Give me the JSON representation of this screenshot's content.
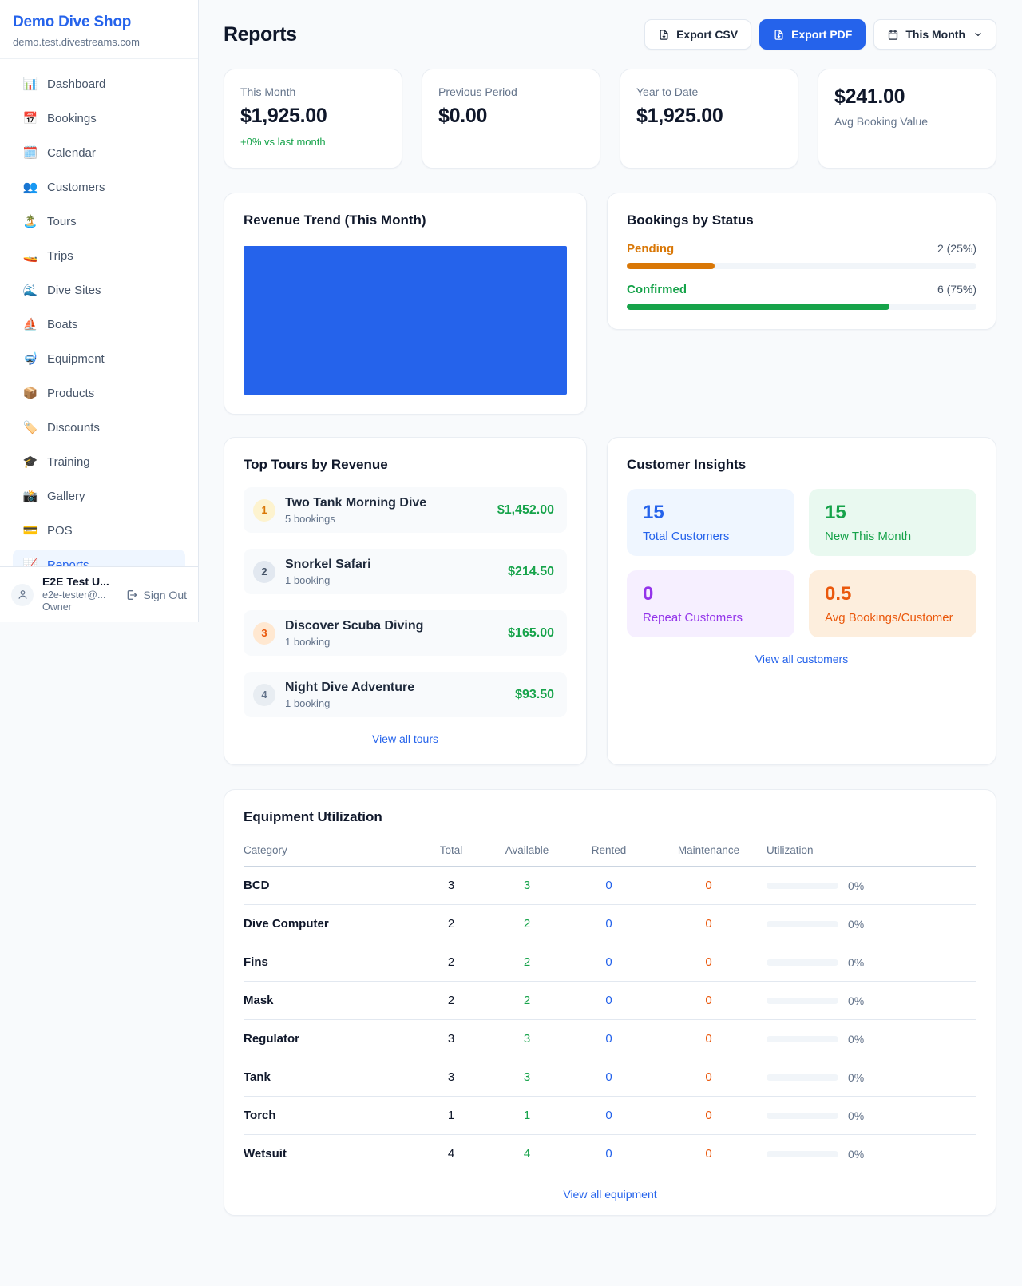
{
  "sidebar": {
    "shop_name": "Demo Dive Shop",
    "shop_domain": "demo.test.divestreams.com",
    "nav": [
      {
        "icon": "📊",
        "label": "Dashboard"
      },
      {
        "icon": "📅",
        "label": "Bookings"
      },
      {
        "icon": "🗓️",
        "label": "Calendar"
      },
      {
        "icon": "👥",
        "label": "Customers"
      },
      {
        "icon": "🏝️",
        "label": "Tours"
      },
      {
        "icon": "🚤",
        "label": "Trips"
      },
      {
        "icon": "🌊",
        "label": "Dive Sites"
      },
      {
        "icon": "⛵",
        "label": "Boats"
      },
      {
        "icon": "🤿",
        "label": "Equipment"
      },
      {
        "icon": "📦",
        "label": "Products"
      },
      {
        "icon": "🏷️",
        "label": "Discounts"
      },
      {
        "icon": "🎓",
        "label": "Training"
      },
      {
        "icon": "📸",
        "label": "Gallery"
      },
      {
        "icon": "💳",
        "label": "POS"
      },
      {
        "icon": "📈",
        "label": "Reports"
      }
    ],
    "user": {
      "name": "E2E Test U...",
      "email": "e2e-tester@...",
      "role": "Owner",
      "sign_out_label": "Sign Out"
    }
  },
  "header": {
    "title": "Reports",
    "export_csv_label": "Export CSV",
    "export_pdf_label": "Export PDF",
    "period_label": "This Month"
  },
  "stats": [
    {
      "label": "This Month",
      "value": "$1,925.00",
      "delta": "+0% vs last month"
    },
    {
      "label": "Previous Period",
      "value": "$0.00"
    },
    {
      "label": "Year to Date",
      "value": "$1,925.00"
    },
    {
      "label": "Avg Booking Value",
      "value": "$241.00"
    }
  ],
  "chart_data": {
    "type": "bar",
    "title": "Revenue Trend (This Month)",
    "categories": [
      "This Month"
    ],
    "values": [
      1925
    ],
    "ylabel": "",
    "xlabel": "",
    "bar_color": "#2563eb",
    "axes_visible": false,
    "legend": false
  },
  "bookings_by_status": {
    "title": "Bookings by Status",
    "rows": [
      {
        "label": "Pending",
        "count": "2 (25%)",
        "percent": 25,
        "color": "#d97706"
      },
      {
        "label": "Confirmed",
        "count": "6 (75%)",
        "percent": 75,
        "color": "#16a34a"
      }
    ]
  },
  "top_tours": {
    "title": "Top Tours by Revenue",
    "items": [
      {
        "rank": "1",
        "name": "Two Tank Morning Dive",
        "bookings": "5 bookings",
        "revenue": "$1,452.00"
      },
      {
        "rank": "2",
        "name": "Snorkel Safari",
        "bookings": "1 booking",
        "revenue": "$214.50"
      },
      {
        "rank": "3",
        "name": "Discover Scuba Diving",
        "bookings": "1 booking",
        "revenue": "$165.00"
      },
      {
        "rank": "4",
        "name": "Night Dive Adventure",
        "bookings": "1 booking",
        "revenue": "$93.50"
      }
    ],
    "view_all_label": "View all tours"
  },
  "customer_insights": {
    "title": "Customer Insights",
    "tiles": [
      {
        "value": "15",
        "label": "Total Customers",
        "theme": "blue"
      },
      {
        "value": "15",
        "label": "New This Month",
        "theme": "green"
      },
      {
        "value": "0",
        "label": "Repeat Customers",
        "theme": "purple"
      },
      {
        "value": "0.5",
        "label": "Avg Bookings/Customer",
        "theme": "orange"
      }
    ],
    "view_all_label": "View all customers"
  },
  "equipment": {
    "title": "Equipment Utilization",
    "columns": [
      "Category",
      "Total",
      "Available",
      "Rented",
      "Maintenance",
      "Utilization"
    ],
    "rows": [
      {
        "category": "BCD",
        "total": "3",
        "available": "3",
        "rented": "0",
        "maintenance": "0",
        "utilization": "0%"
      },
      {
        "category": "Dive Computer",
        "total": "2",
        "available": "2",
        "rented": "0",
        "maintenance": "0",
        "utilization": "0%"
      },
      {
        "category": "Fins",
        "total": "2",
        "available": "2",
        "rented": "0",
        "maintenance": "0",
        "utilization": "0%"
      },
      {
        "category": "Mask",
        "total": "2",
        "available": "2",
        "rented": "0",
        "maintenance": "0",
        "utilization": "0%"
      },
      {
        "category": "Regulator",
        "total": "3",
        "available": "3",
        "rented": "0",
        "maintenance": "0",
        "utilization": "0%"
      },
      {
        "category": "Tank",
        "total": "3",
        "available": "3",
        "rented": "0",
        "maintenance": "0",
        "utilization": "0%"
      },
      {
        "category": "Torch",
        "total": "1",
        "available": "1",
        "rented": "0",
        "maintenance": "0",
        "utilization": "0%"
      },
      {
        "category": "Wetsuit",
        "total": "4",
        "available": "4",
        "rented": "0",
        "maintenance": "0",
        "utilization": "0%"
      }
    ],
    "view_all_label": "View all equipment"
  },
  "colors": {
    "accent_blue": "#2563eb",
    "green": "#16a34a",
    "amber": "#d97706",
    "orange": "#ea580c"
  }
}
